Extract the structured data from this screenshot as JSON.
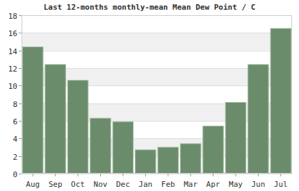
{
  "chart_data": {
    "type": "bar",
    "title": "Last 12-months monthly-mean Mean Dew Point / C",
    "categories": [
      "Aug",
      "Sep",
      "Oct",
      "Nov",
      "Dec",
      "Jan",
      "Feb",
      "Mar",
      "Apr",
      "May",
      "Jun",
      "Jul"
    ],
    "values": [
      14.4,
      12.4,
      10.6,
      6.3,
      5.9,
      2.7,
      3.0,
      3.4,
      5.4,
      8.1,
      12.4,
      16.5
    ],
    "color": "#6b8c6b",
    "ylim": [
      0,
      18
    ],
    "yticks": [
      0,
      2,
      4,
      6,
      8,
      10,
      12,
      14,
      16,
      18
    ],
    "grid": true
  }
}
